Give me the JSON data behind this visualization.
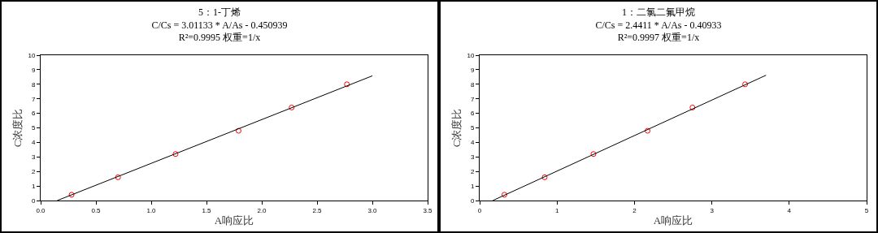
{
  "chart_data": [
    {
      "type": "scatter",
      "title": "5：1-丁烯",
      "subtitle": "C/Cs = 3.01133 * A/As - 0.450939",
      "annotations": [
        "R²=0.9995 权重=1/x"
      ],
      "xlabel": "A响应比",
      "ylabel": "C浓度比",
      "grid": false,
      "legend": false,
      "xlim": [
        0,
        3.5
      ],
      "xticks": [
        {
          "value": 0,
          "label": "0.0"
        },
        0.5,
        {
          "value": 1,
          "label": "1.0"
        },
        1.5,
        {
          "value": 2,
          "label": "2.0"
        },
        2.5,
        {
          "value": 3,
          "label": "3.0"
        },
        3.5
      ],
      "ylim": [
        0,
        10
      ],
      "yticks": [
        0,
        1,
        2,
        3,
        4,
        5,
        6,
        7,
        8,
        9,
        10
      ],
      "series": [
        {
          "marker": "circle",
          "color": "#ff0000",
          "x": [
            0.28,
            0.7,
            1.22,
            1.79,
            2.27,
            2.77
          ],
          "values": [
            0.4,
            1.6,
            3.2,
            4.8,
            6.4,
            8.0
          ]
        },
        {
          "type": "line",
          "color": "#000000",
          "x": [
            0.15,
            3.0
          ],
          "values": [
            0,
            8.58
          ]
        }
      ]
    },
    {
      "type": "scatter",
      "title": "1：二氯二氟甲烷",
      "subtitle": "C/Cs = 2.4411 * A/As - 0.40933",
      "annotations": [
        "R²=0.9997 权重=1/x"
      ],
      "xlabel": "A响应比",
      "ylabel": "C浓度比",
      "grid": false,
      "legend": false,
      "xlim": [
        0,
        5
      ],
      "xticks": [
        0,
        1,
        2,
        3,
        4,
        5
      ],
      "ylim": [
        0,
        10
      ],
      "yticks": [
        0,
        1,
        2,
        3,
        4,
        5,
        6,
        7,
        8,
        9,
        10
      ],
      "series": [
        {
          "marker": "circle",
          "color": "#ff0000",
          "x": [
            0.32,
            0.84,
            1.47,
            2.17,
            2.75,
            3.43
          ],
          "values": [
            0.4,
            1.6,
            3.2,
            4.8,
            6.4,
            8.0
          ]
        },
        {
          "type": "line",
          "color": "#000000",
          "x": [
            0.17,
            3.7
          ],
          "values": [
            0,
            8.62
          ]
        }
      ]
    }
  ]
}
